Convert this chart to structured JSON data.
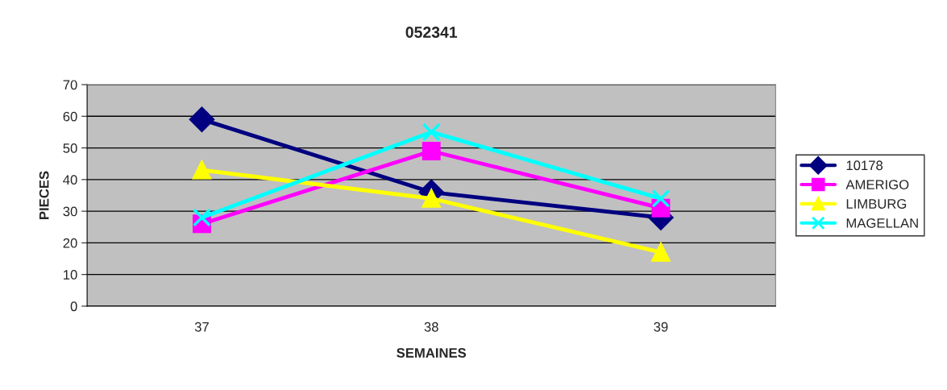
{
  "chart_data": {
    "type": "line",
    "title": "052341",
    "xlabel": "SEMAINES",
    "ylabel": "PIECES",
    "categories": [
      "37",
      "38",
      "39"
    ],
    "series": [
      {
        "name": "10178",
        "color": "#000080",
        "marker": "diamond",
        "values": [
          59,
          36,
          28
        ]
      },
      {
        "name": "AMERIGO",
        "color": "#ff00ff",
        "marker": "square",
        "values": [
          26,
          49,
          31
        ]
      },
      {
        "name": "LIMBURG",
        "color": "#ffff00",
        "marker": "triangle",
        "values": [
          43,
          34,
          17
        ]
      },
      {
        "name": "MAGELLAN",
        "color": "#00ffff",
        "marker": "cross",
        "values": [
          28,
          55,
          34
        ]
      }
    ],
    "ylim": [
      0,
      70
    ],
    "yticks": [
      0,
      10,
      20,
      30,
      40,
      50,
      60,
      70
    ],
    "grid": "y",
    "legend": "right",
    "line_style": "solid"
  }
}
